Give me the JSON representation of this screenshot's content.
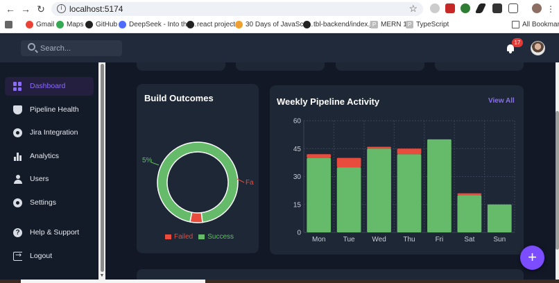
{
  "browser": {
    "url": "localhost:5174",
    "bookmarks": [
      {
        "label": "Gmail",
        "color": "#ea4335"
      },
      {
        "label": "Maps",
        "color": "#34a853"
      },
      {
        "label": "GitHub",
        "color": "#222222"
      },
      {
        "label": "DeepSeek - Into the...",
        "color": "#4d6bfe"
      },
      {
        "label": "react projects",
        "color": "#222222"
      },
      {
        "label": "30 Days of JavaScri...",
        "color": "#f0a030"
      },
      {
        "label": "tbl-backend/index.j...",
        "color": "#222222"
      },
      {
        "label": "MERN 1",
        "color": "#bbbbbb"
      },
      {
        "label": "TypeScript",
        "color": "#bbbbbb"
      }
    ],
    "all_bookmarks": "All Bookmarks"
  },
  "header": {
    "search_placeholder": "Search...",
    "notification_count": "17"
  },
  "sidebar": {
    "items": [
      {
        "label": "Dashboard",
        "icon": "dashboard-icon",
        "active": true
      },
      {
        "label": "Pipeline Health",
        "icon": "shield-icon"
      },
      {
        "label": "Jira Integration",
        "icon": "bug-icon"
      },
      {
        "label": "Analytics",
        "icon": "bar-chart-icon"
      },
      {
        "label": "Users",
        "icon": "user-icon"
      },
      {
        "label": "Settings",
        "icon": "gear-icon"
      },
      {
        "label": "Help & Support",
        "icon": "help-icon"
      },
      {
        "label": "Logout",
        "icon": "logout-icon"
      }
    ]
  },
  "build_outcomes": {
    "title": "Build Outcomes",
    "chart_data": {
      "type": "pie",
      "title": "Build Outcomes",
      "labels": [
        "Failed",
        "Success"
      ],
      "values": [
        5,
        95
      ],
      "colors": [
        "#e74c3c",
        "#66bb6a"
      ],
      "slice_labels": [
        "Fa",
        "5%"
      ],
      "legend": "bottom"
    }
  },
  "weekly_pipeline": {
    "title": "Weekly Pipeline Activity",
    "view_all": "View All",
    "chart_data": {
      "type": "bar",
      "stacked": true,
      "categories": [
        "Mon",
        "Tue",
        "Wed",
        "Thu",
        "Fri",
        "Sat",
        "Sun"
      ],
      "series": [
        {
          "values": [
            40,
            35,
            45,
            42,
            50,
            20,
            15
          ],
          "color": "#66bb6a"
        },
        {
          "values": [
            2,
            5,
            1,
            3,
            0,
            1,
            0
          ],
          "color": "#e74c3c"
        }
      ],
      "ylim": [
        0,
        60
      ],
      "yticks": [
        "0",
        "15",
        "30",
        "45",
        "60"
      ],
      "grid": true
    }
  }
}
